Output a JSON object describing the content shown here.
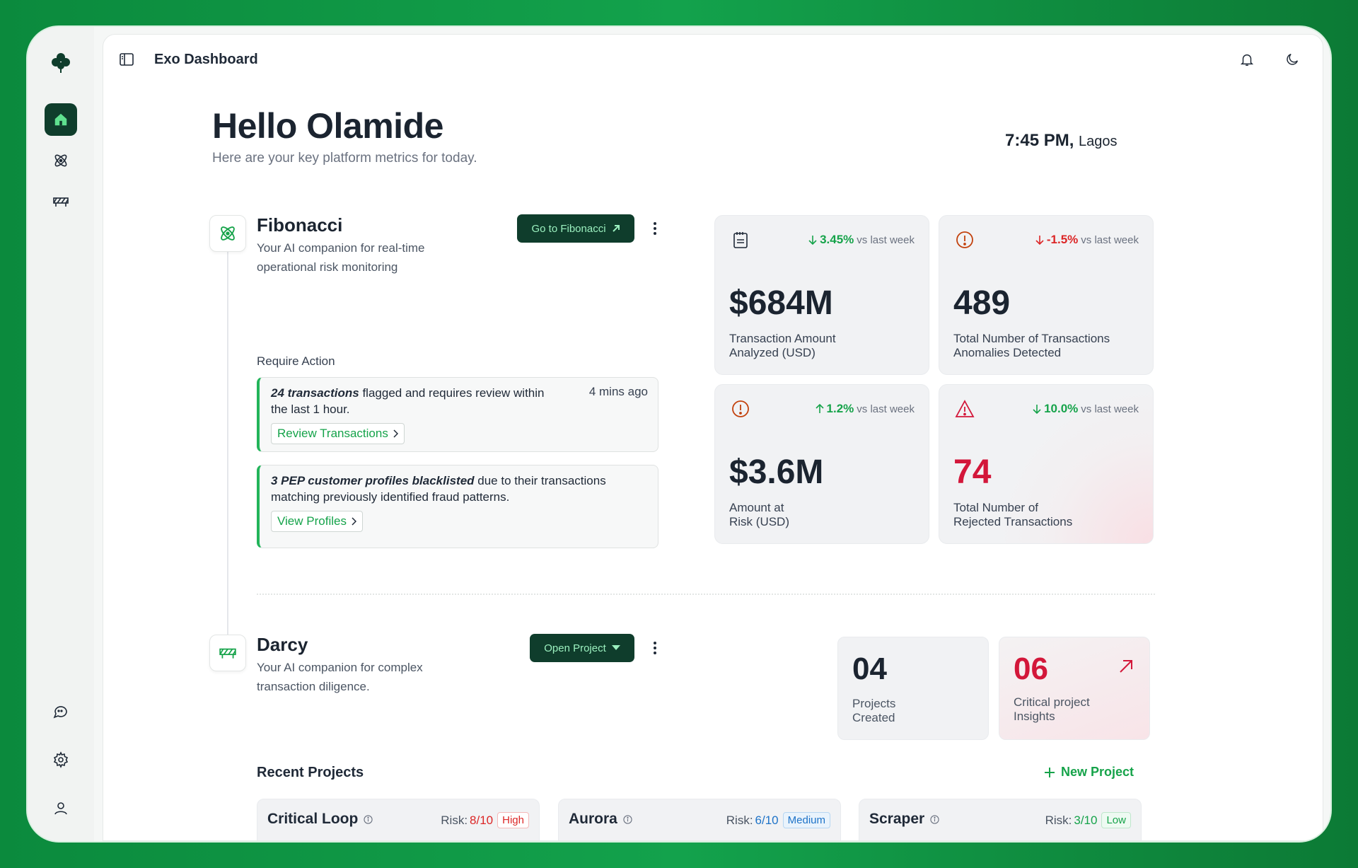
{
  "app": {
    "title": "Exo Dashboard"
  },
  "greeting": {
    "title": "Hello Olamide",
    "subtitle": "Here are your key platform metrics for today."
  },
  "clock": {
    "time": "7:45 PM,",
    "city": "Lagos"
  },
  "fibonacci": {
    "name": "Fibonacci",
    "description": "Your AI companion for real-time operational risk monitoring",
    "button": "Go to Fibonacci",
    "require_action_label": "Require Action",
    "alerts": [
      {
        "bold": "24 transactions",
        "text": " flagged and requires review within the last 1 hour.",
        "time": "4 mins ago",
        "link": "Review Transactions"
      },
      {
        "bold": "3 PEP customer profiles blacklisted",
        "text": " due to their transactions matching previously identified fraud patterns.",
        "time": "",
        "link": "View Profiles"
      }
    ],
    "metrics": [
      {
        "icon": "clipboard-icon",
        "delta": "3.45%",
        "direction": "down",
        "delta_color": "#16a34a",
        "vs": "vs last week",
        "value": "$684M",
        "label": "Transaction Amount Analyzed (USD)"
      },
      {
        "icon": "alert-circle-icon",
        "delta": "-1.5%",
        "direction": "down",
        "delta_color": "#dc2626",
        "vs": "vs last week",
        "value": "489",
        "label": "Total Number of Transactions Anomalies Detected"
      },
      {
        "icon": "alert-circle-icon",
        "delta": "1.2%",
        "direction": "up",
        "delta_color": "#16a34a",
        "vs": "vs last week",
        "value": "$3.6M",
        "label": "Amount at Risk (USD)"
      },
      {
        "icon": "warning-triangle-icon",
        "delta": "10.0%",
        "direction": "down",
        "delta_color": "#16a34a",
        "vs": "vs last week",
        "value": "74",
        "label": "Total Number of Rejected Transactions"
      }
    ]
  },
  "darcy": {
    "name": "Darcy",
    "description": "Your AI companion for complex transaction diligence.",
    "button": "Open Project",
    "stats": [
      {
        "value": "04",
        "label": "Projects Created"
      },
      {
        "value": "06",
        "label": "Critical project Insights"
      }
    ]
  },
  "recent_projects": {
    "title": "Recent Projects",
    "new_label": "New Project",
    "risk_label": "Risk:",
    "items": [
      {
        "name": "Critical Loop",
        "risk": "8/10",
        "level": "High",
        "risk_color": "#dc2626"
      },
      {
        "name": "Aurora",
        "risk": "6/10",
        "level": "Medium",
        "risk_color": "#1e73c8"
      },
      {
        "name": "Scraper",
        "risk": "3/10",
        "level": "Low",
        "risk_color": "#16a34a"
      }
    ]
  },
  "colors": {
    "brand_dark": "#0f3d2c",
    "accent_green": "#16a34a",
    "danger": "#dc2626",
    "frame_green": "#13a24c"
  }
}
